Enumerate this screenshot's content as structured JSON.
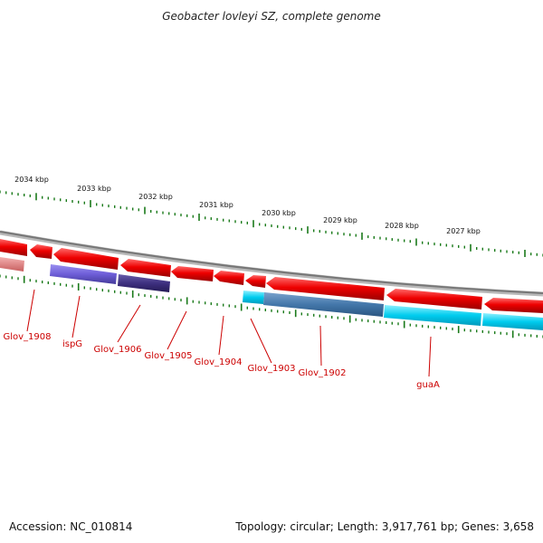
{
  "title": "Geobacter lovleyi SZ, complete genome",
  "footer": {
    "accession": "Accession: NC_010814",
    "summary": "Topology: circular; Length: 3,917,761 bp; Genes: 3,658"
  },
  "kbp_ticks": [
    "2034 kbp",
    "2033 kbp",
    "2032 kbp",
    "2031 kbp",
    "2030 kbp",
    "2029 kbp",
    "2028 kbp",
    "2027 kbp"
  ],
  "genes": [
    {
      "id": "glov-1908",
      "label": "Glov_1908"
    },
    {
      "id": "ispg",
      "label": "ispG"
    },
    {
      "id": "glov-1906",
      "label": "Glov_1906"
    },
    {
      "id": "glov-1905",
      "label": "Glov_1905"
    },
    {
      "id": "glov-1904",
      "label": "Glov_1904"
    },
    {
      "id": "glov-1903",
      "label": "Glov_1903"
    },
    {
      "id": "glov-1902",
      "label": "Glov_1902"
    },
    {
      "id": "guaa",
      "label": "guaA"
    }
  ],
  "colors": {
    "cds_forward": "#ee0000",
    "cds_light": "#e88080",
    "blue_light": "#7766dd",
    "blue_dark": "#443388",
    "cyan": "#00ccee",
    "steel": "#4477aa",
    "label": "#cc0000",
    "tick": "#1a7a1a",
    "backbone": "#888888"
  }
}
